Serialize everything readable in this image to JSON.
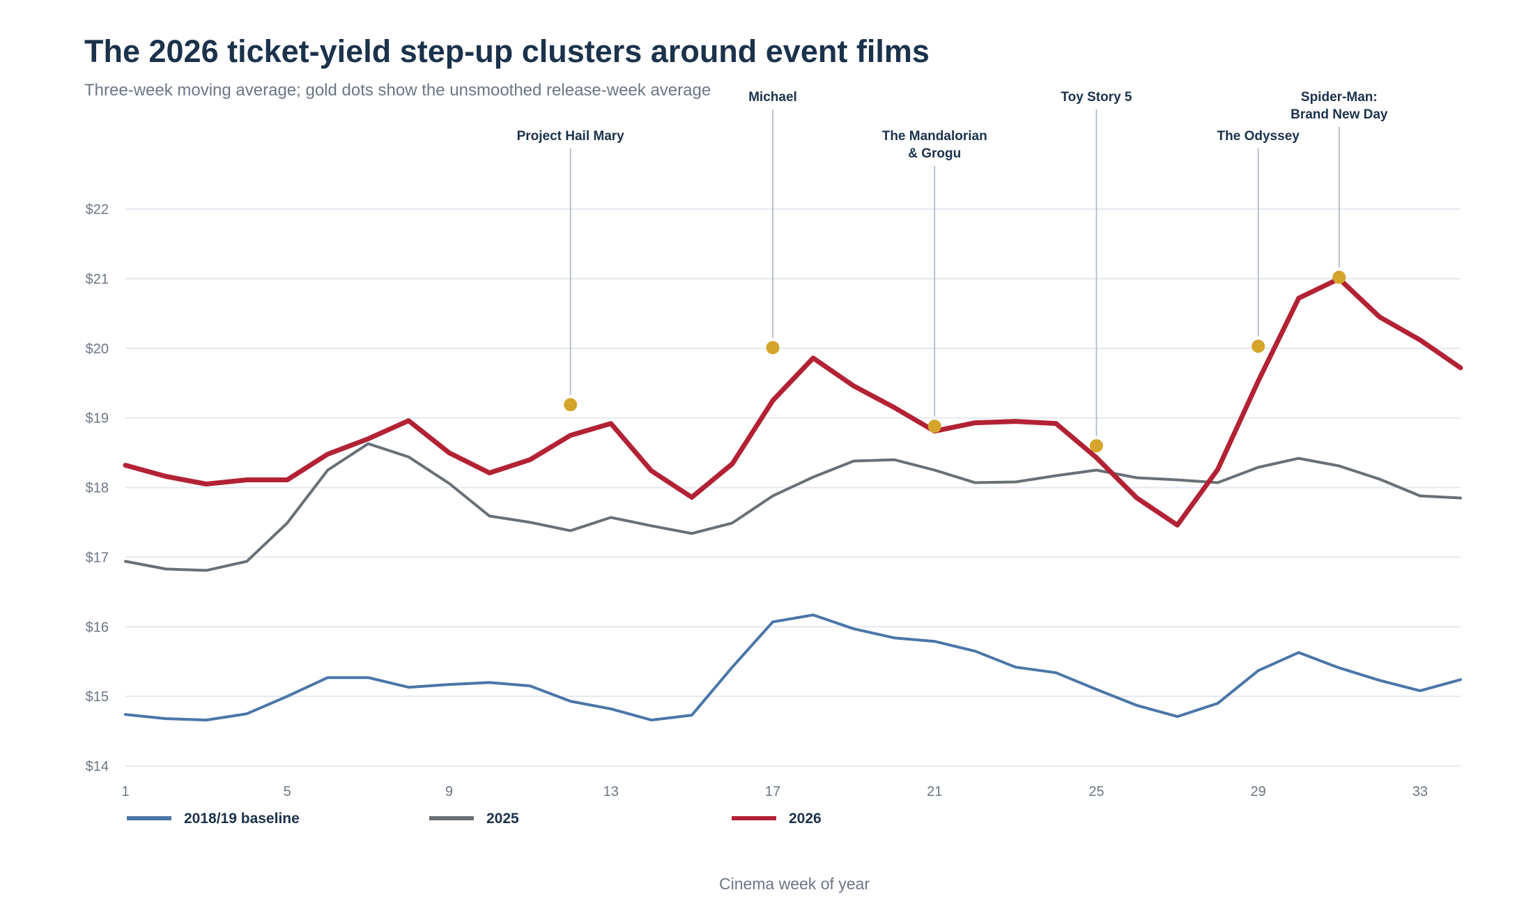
{
  "chart_data": {
    "type": "line",
    "title": "The 2026 ticket-yield step-up clusters around event films",
    "subtitle": "Three-week moving average; gold dots show the unsmoothed release-week average",
    "xlabel": "Cinema week of year",
    "ylabel": "",
    "x": [
      1,
      2,
      3,
      4,
      5,
      6,
      7,
      8,
      9,
      10,
      11,
      12,
      13,
      14,
      15,
      16,
      17,
      18,
      19,
      20,
      21,
      22,
      23,
      24,
      25,
      26,
      27,
      28,
      29,
      30,
      31,
      32,
      33,
      34
    ],
    "xlim": [
      1,
      34
    ],
    "ylim": [
      14,
      22
    ],
    "x_ticks": [
      1,
      5,
      9,
      13,
      17,
      21,
      25,
      29,
      33
    ],
    "x_tick_labels": [
      "1",
      "5",
      "9",
      "13",
      "17",
      "21",
      "25",
      "29",
      "33"
    ],
    "y_ticks": [
      14,
      15,
      16,
      17,
      18,
      19,
      20,
      21,
      22
    ],
    "y_tick_labels": [
      "$14",
      "$15",
      "$16",
      "$17",
      "$18",
      "$19",
      "$20",
      "$21",
      "$22"
    ],
    "grid": "horizontal",
    "legend_position": "bottom-left",
    "series": [
      {
        "name": "2018/19 baseline",
        "color": "#4a76a8",
        "values": [
          14.74,
          14.68,
          14.66,
          14.75,
          15.0,
          15.27,
          15.27,
          15.13,
          15.17,
          15.2,
          15.15,
          14.93,
          14.82,
          14.66,
          14.73,
          15.42,
          16.07,
          16.17,
          15.97,
          15.84,
          15.79,
          15.65,
          15.42,
          15.34,
          15.1,
          14.87,
          14.71,
          14.9,
          15.37,
          15.63,
          15.41,
          15.23,
          15.08,
          15.24
        ]
      },
      {
        "name": "2025",
        "color": "#687077",
        "values": [
          16.94,
          16.83,
          16.81,
          16.94,
          17.49,
          18.25,
          18.63,
          18.44,
          18.06,
          17.59,
          17.5,
          17.38,
          17.57,
          17.45,
          17.34,
          17.49,
          17.88,
          18.15,
          18.38,
          18.4,
          18.25,
          18.07,
          18.08,
          18.17,
          18.25,
          18.14,
          18.11,
          18.07,
          18.29,
          18.42,
          18.31,
          18.12,
          17.88,
          17.85
        ]
      },
      {
        "name": "2026",
        "color": "#b22234",
        "values": [
          18.32,
          18.16,
          18.05,
          18.11,
          18.11,
          18.48,
          18.7,
          18.96,
          18.5,
          18.21,
          18.4,
          18.75,
          18.92,
          18.24,
          17.86,
          18.34,
          19.25,
          19.86,
          19.46,
          19.15,
          18.81,
          18.93,
          18.95,
          18.92,
          18.43,
          17.85,
          17.46,
          18.26,
          19.53,
          20.72,
          21.0,
          20.45,
          20.12,
          19.72
        ]
      }
    ],
    "release_points": {
      "color": "#d4a52a",
      "points": [
        {
          "x": 12,
          "y": 19.19,
          "label": [
            "Project Hail Mary"
          ]
        },
        {
          "x": 17,
          "y": 20.01,
          "label": [
            "Michael"
          ]
        },
        {
          "x": 21,
          "y": 18.88,
          "label": [
            "The Mandalorian",
            "& Grogu"
          ]
        },
        {
          "x": 25,
          "y": 18.6,
          "label": [
            "Toy Story 5"
          ]
        },
        {
          "x": 29,
          "y": 20.03,
          "label": [
            "The Odyssey"
          ]
        },
        {
          "x": 31,
          "y": 21.02,
          "label": [
            "Spider-Man:",
            "Brand New Day"
          ]
        }
      ]
    }
  }
}
